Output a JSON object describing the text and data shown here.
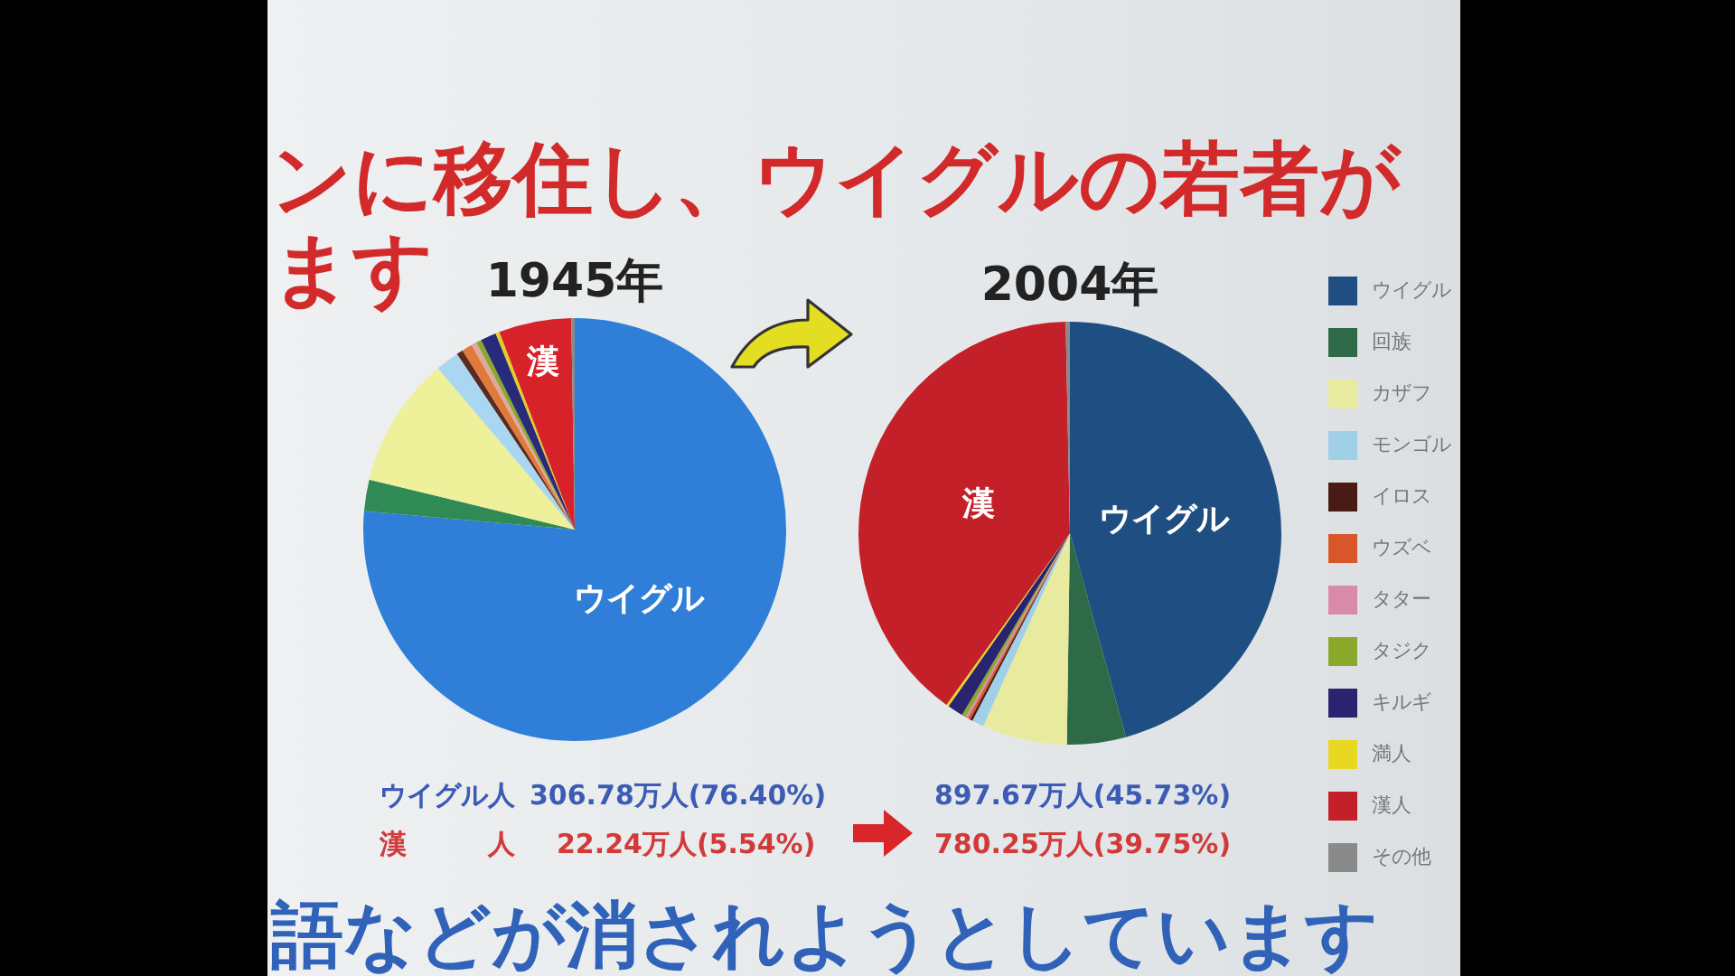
{
  "chart_data": [
    {
      "type": "pie",
      "title": "1945年",
      "categories": [
        "ウイグル",
        null,
        null,
        null,
        null,
        null,
        null,
        null,
        null,
        null,
        "漢",
        null
      ],
      "values": [
        76.4,
        2.4,
        10.0,
        1.8,
        0.5,
        0.8,
        0.4,
        0.4,
        1.2,
        0.3,
        5.54,
        0.26
      ],
      "colors": [
        "#2f7fd8",
        "#2f8a55",
        "#eef09a",
        "#a9d6f0",
        "#5a2a20",
        "#e07a3a",
        "#e0a8a0",
        "#8aa82a",
        "#2a2a7a",
        "#e0d020",
        "#d8222a",
        "#8a8a8a"
      ],
      "annotations": [
        "ンに移住し、ウイグルの若者が",
        "ます",
        "ウイグル人",
        "306.78万人(76.40%)",
        "漢　　　人",
        "22.24万人(5.54%)",
        "語などが消されようとしています"
      ]
    },
    {
      "type": "pie",
      "title": "2004年",
      "categories": [
        "ウイグル",
        "回族",
        "カザフ",
        "モンゴル",
        "イロス",
        "ウズベ",
        "タター",
        "タジク",
        "キルギ",
        "満人",
        "漢人",
        "その他"
      ],
      "values": [
        45.73,
        4.5,
        6.5,
        0.9,
        0.2,
        0.2,
        0.2,
        0.3,
        1.2,
        0.2,
        39.75,
        0.32
      ],
      "colors": [
        "#1f4f82",
        "#2e6a48",
        "#e8eaa0",
        "#a0d0e8",
        "#4a1a14",
        "#d9562a",
        "#d88aa8",
        "#8aa82a",
        "#2a2470",
        "#e8d820",
        "#c4202a",
        "#8a8a8a"
      ],
      "value_labels": [
        "ウイグル",
        null,
        null,
        null,
        null,
        null,
        null,
        null,
        null,
        null,
        "漢",
        null
      ],
      "legend": "right",
      "annotations": [
        "897.67万人(45.73%)",
        "780.25万人(39.75%)"
      ]
    }
  ]
}
